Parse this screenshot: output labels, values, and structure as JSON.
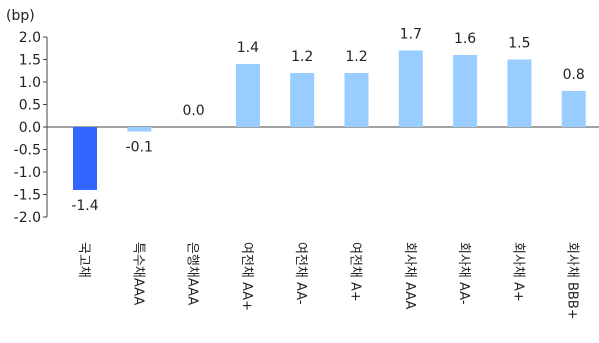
{
  "chart_data": {
    "type": "bar",
    "unit": "(bp)",
    "categories": [
      "국고채",
      "특수채AAA",
      "은행채AAA",
      "여전채 AA+",
      "여전채 AA-",
      "여전채 A+",
      "회사채 AAA",
      "회사채 AA-",
      "회사채 A+",
      "회사채 BBB+"
    ],
    "values": [
      -1.4,
      -0.1,
      0.0,
      1.4,
      1.2,
      1.2,
      1.7,
      1.6,
      1.5,
      0.8
    ],
    "value_labels": [
      "-1.4",
      "-0.1",
      "0.0",
      "1.4",
      "1.2",
      "1.2",
      "1.7",
      "1.6",
      "1.5",
      "0.8"
    ],
    "ylim": [
      -2.0,
      2.0
    ],
    "yticks": [
      2.0,
      1.5,
      1.0,
      0.5,
      0.0,
      -0.5,
      -1.0,
      -1.5,
      -2.0
    ],
    "ytick_labels": [
      "2.0",
      "1.5",
      "1.0",
      "0.5",
      "0.0",
      "-0.5",
      "-1.0",
      "-1.5",
      "-2.0"
    ],
    "highlight_color": "#3366ff",
    "bar_color": "#99ccff",
    "grid": false,
    "legend": "none"
  }
}
